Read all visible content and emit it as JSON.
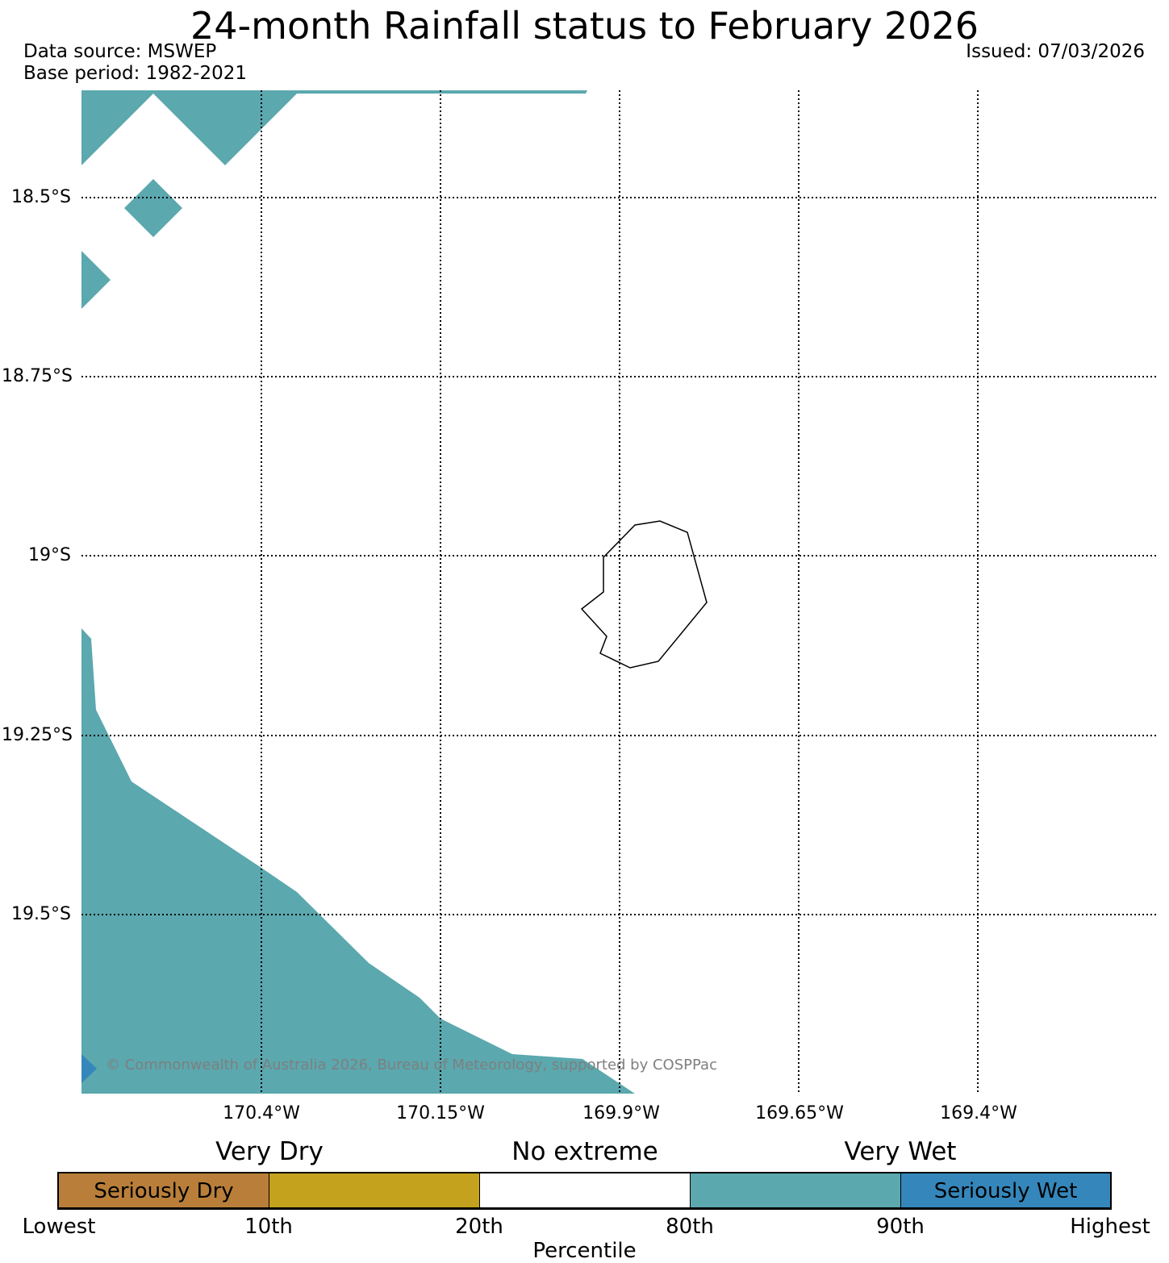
{
  "title": "24-month Rainfall status to February 2026",
  "data_source": "Data source: MSWEP",
  "base_period": "Base period: 1982-2021",
  "issued": "Issued: 07/03/2026",
  "map": {
    "lat_labels": [
      "18.5°S",
      "18.75°S",
      "19°S",
      "19.25°S",
      "19.5°S"
    ],
    "lon_labels": [
      "170.4°W",
      "170.15°W",
      "169.9°W",
      "169.65°W",
      "169.4°W"
    ],
    "fill_color_very_wet": "#5ba8ae",
    "fill_color_seriously_wet": "#3587bb",
    "island_outline_color": "#000000"
  },
  "copyright": "© Commonwealth of Australia 2026, Bureau of Meteorology, supported by COSPPac",
  "legend": {
    "categories": {
      "very_dry": "Very Dry",
      "no_extreme": "No extreme",
      "very_wet": "Very Wet"
    },
    "segments": [
      {
        "label": "Seriously Dry",
        "color": "#b97f3a"
      },
      {
        "label": "",
        "color": "#c4a21e"
      },
      {
        "label": "",
        "color": "#ffffff"
      },
      {
        "label": "",
        "color": "#5ba8ae"
      },
      {
        "label": "Seriously Wet",
        "color": "#3587bb"
      }
    ],
    "ticks": [
      "Lowest",
      "10th",
      "20th",
      "80th",
      "90th",
      "Highest"
    ],
    "axis_label": "Percentile"
  }
}
